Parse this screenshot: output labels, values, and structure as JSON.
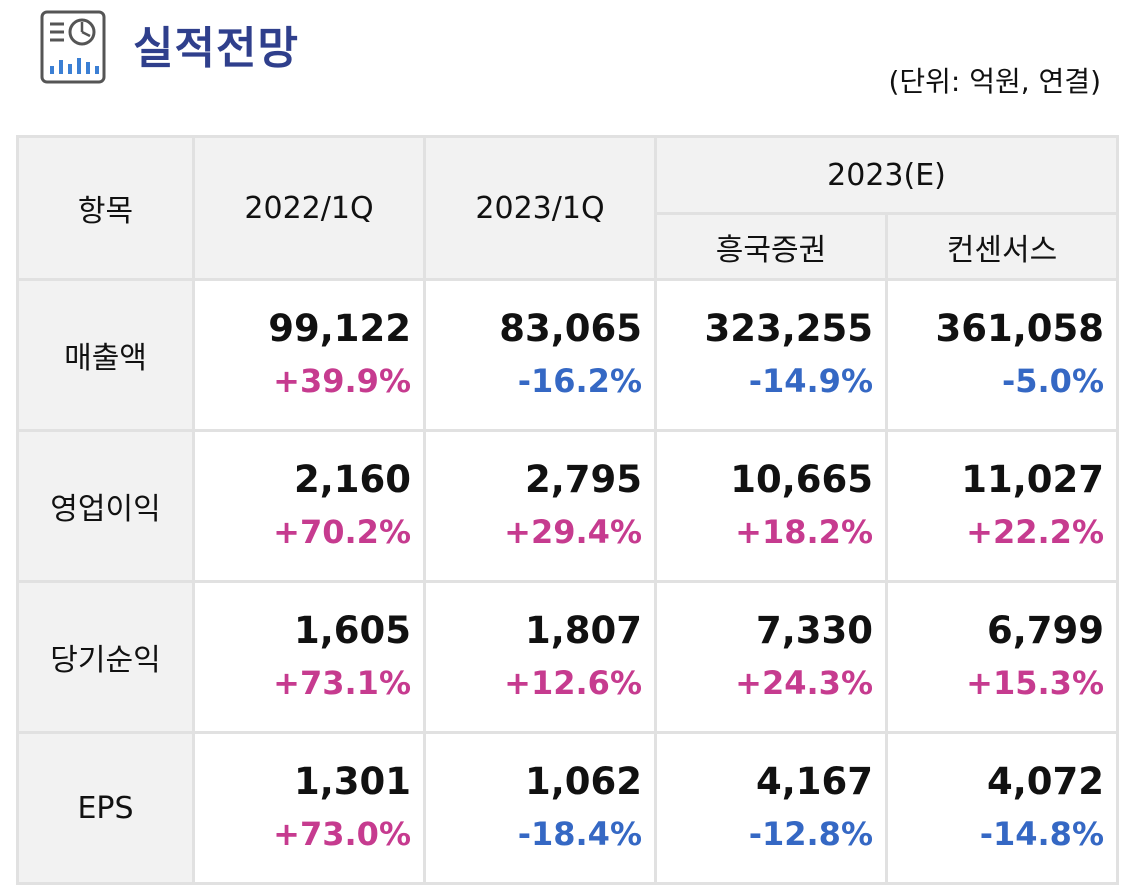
{
  "header": {
    "title": "실적전망",
    "unit_note": "(단위: 억원, 연결)",
    "icon": "report-chart-icon"
  },
  "colors": {
    "title": "#2f3f8c",
    "positive": "#c63b8f",
    "negative": "#3568c4",
    "header_bg": "#f2f2f2"
  },
  "table": {
    "col_item": "항목",
    "col_2022q1": "2022/1Q",
    "col_2023q1": "2023/1Q",
    "col_2023e": "2023(E)",
    "col_heungkuk": "흥국증권",
    "col_consensus": "컨센서스",
    "rows": [
      {
        "label": "매출액",
        "cells": [
          {
            "value": "99,122",
            "change": "+39.9%",
            "sign": "pos"
          },
          {
            "value": "83,065",
            "change": "-16.2%",
            "sign": "neg"
          },
          {
            "value": "323,255",
            "change": "-14.9%",
            "sign": "neg"
          },
          {
            "value": "361,058",
            "change": "-5.0%",
            "sign": "neg"
          }
        ]
      },
      {
        "label": "영업이익",
        "cells": [
          {
            "value": "2,160",
            "change": "+70.2%",
            "sign": "pos"
          },
          {
            "value": "2,795",
            "change": "+29.4%",
            "sign": "pos"
          },
          {
            "value": "10,665",
            "change": "+18.2%",
            "sign": "pos"
          },
          {
            "value": "11,027",
            "change": "+22.2%",
            "sign": "pos"
          }
        ]
      },
      {
        "label": "당기순익",
        "cells": [
          {
            "value": "1,605",
            "change": "+73.1%",
            "sign": "pos"
          },
          {
            "value": "1,807",
            "change": "+12.6%",
            "sign": "pos"
          },
          {
            "value": "7,330",
            "change": "+24.3%",
            "sign": "pos"
          },
          {
            "value": "6,799",
            "change": "+15.3%",
            "sign": "pos"
          }
        ]
      },
      {
        "label": "EPS",
        "cells": [
          {
            "value": "1,301",
            "change": "+73.0%",
            "sign": "pos"
          },
          {
            "value": "1,062",
            "change": "-18.4%",
            "sign": "neg"
          },
          {
            "value": "4,167",
            "change": "-12.8%",
            "sign": "neg"
          },
          {
            "value": "4,072",
            "change": "-14.8%",
            "sign": "neg"
          }
        ]
      }
    ]
  }
}
